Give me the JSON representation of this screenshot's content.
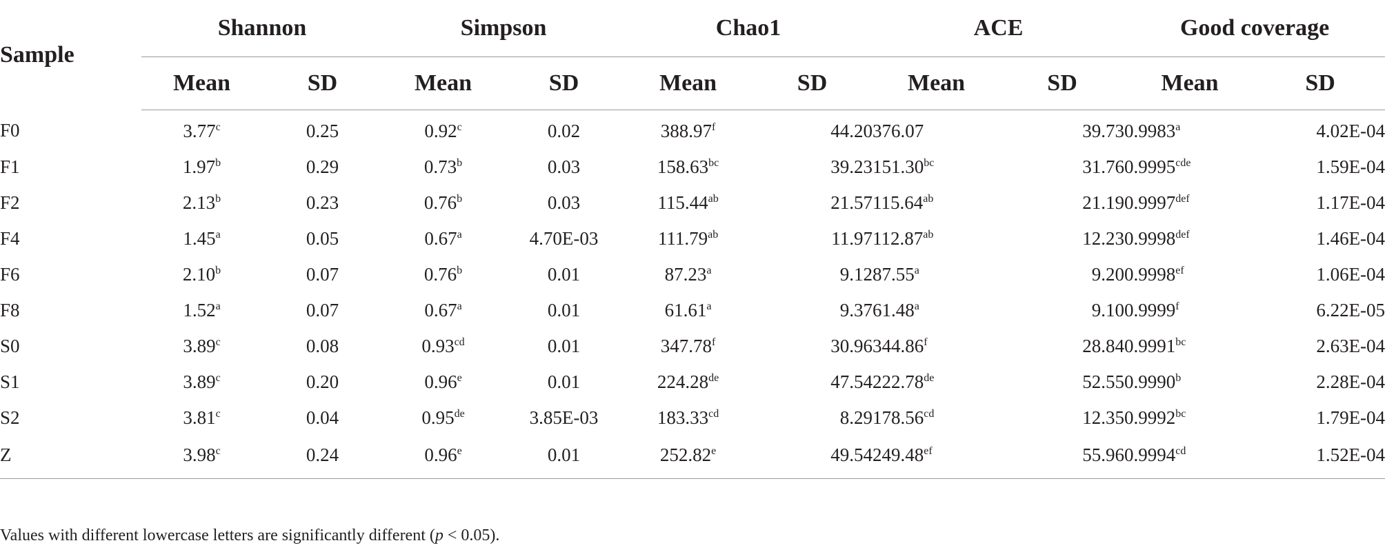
{
  "table": {
    "sample_header": "Sample",
    "groups": [
      "Shannon",
      "Simpson",
      "Chao1",
      "ACE",
      "Good coverage"
    ],
    "subheaders": [
      "Mean",
      "SD",
      "Mean",
      "SD",
      "Mean",
      "SD",
      "Mean",
      "SD",
      "Mean",
      "SD"
    ],
    "rows": [
      {
        "sample": "F0",
        "shannon_mean": "3.77",
        "shannon_sup": "c",
        "shannon_sd": "0.25",
        "simpson_mean": "0.92",
        "simpson_sup": "c",
        "simpson_sd": "0.02",
        "chao1_mean": "388.97",
        "chao1_sup": "f",
        "chao1_sd": "44.20",
        "ace_mean": "376.07",
        "ace_sup": "",
        "ace_sd": "39.73",
        "good_mean": "0.9983",
        "good_sup": "a",
        "good_sd": "4.02E-04"
      },
      {
        "sample": "F1",
        "shannon_mean": "1.97",
        "shannon_sup": "b",
        "shannon_sd": "0.29",
        "simpson_mean": "0.73",
        "simpson_sup": "b",
        "simpson_sd": "0.03",
        "chao1_mean": "158.63",
        "chao1_sup": "bc",
        "chao1_sd": "39.23",
        "ace_mean": "151.30",
        "ace_sup": "bc",
        "ace_sd": "31.76",
        "good_mean": "0.9995",
        "good_sup": "cde",
        "good_sd": "1.59E-04"
      },
      {
        "sample": "F2",
        "shannon_mean": "2.13",
        "shannon_sup": "b",
        "shannon_sd": "0.23",
        "simpson_mean": "0.76",
        "simpson_sup": "b",
        "simpson_sd": "0.03",
        "chao1_mean": "115.44",
        "chao1_sup": "ab",
        "chao1_sd": "21.57",
        "ace_mean": "115.64",
        "ace_sup": "ab",
        "ace_sd": "21.19",
        "good_mean": "0.9997",
        "good_sup": "def",
        "good_sd": "1.17E-04"
      },
      {
        "sample": "F4",
        "shannon_mean": "1.45",
        "shannon_sup": "a",
        "shannon_sd": "0.05",
        "simpson_mean": "0.67",
        "simpson_sup": "a",
        "simpson_sd": "4.70E-03",
        "chao1_mean": "111.79",
        "chao1_sup": "ab",
        "chao1_sd": "11.97",
        "ace_mean": "112.87",
        "ace_sup": "ab",
        "ace_sd": "12.23",
        "good_mean": "0.9998",
        "good_sup": "def",
        "good_sd": "1.46E-04"
      },
      {
        "sample": "F6",
        "shannon_mean": "2.10",
        "shannon_sup": "b",
        "shannon_sd": "0.07",
        "simpson_mean": "0.76",
        "simpson_sup": "b",
        "simpson_sd": "0.01",
        "chao1_mean": "87.23",
        "chao1_sup": "a",
        "chao1_sd": "9.12",
        "ace_mean": "87.55",
        "ace_sup": "a",
        "ace_sd": "9.20",
        "good_mean": "0.9998",
        "good_sup": "ef",
        "good_sd": "1.06E-04"
      },
      {
        "sample": "F8",
        "shannon_mean": "1.52",
        "shannon_sup": "a",
        "shannon_sd": "0.07",
        "simpson_mean": "0.67",
        "simpson_sup": "a",
        "simpson_sd": "0.01",
        "chao1_mean": "61.61",
        "chao1_sup": "a",
        "chao1_sd": "9.37",
        "ace_mean": "61.48",
        "ace_sup": "a",
        "ace_sd": "9.10",
        "good_mean": "0.9999",
        "good_sup": "f",
        "good_sd": "6.22E-05"
      },
      {
        "sample": "S0",
        "shannon_mean": "3.89",
        "shannon_sup": "c",
        "shannon_sd": "0.08",
        "simpson_mean": "0.93",
        "simpson_sup": "cd",
        "simpson_sd": "0.01",
        "chao1_mean": "347.78",
        "chao1_sup": "f",
        "chao1_sd": "30.96",
        "ace_mean": "344.86",
        "ace_sup": "f",
        "ace_sd": "28.84",
        "good_mean": "0.9991",
        "good_sup": "bc",
        "good_sd": "2.63E-04"
      },
      {
        "sample": "S1",
        "shannon_mean": "3.89",
        "shannon_sup": "c",
        "shannon_sd": "0.20",
        "simpson_mean": "0.96",
        "simpson_sup": "e",
        "simpson_sd": "0.01",
        "chao1_mean": "224.28",
        "chao1_sup": "de",
        "chao1_sd": "47.54",
        "ace_mean": "222.78",
        "ace_sup": "de",
        "ace_sd": "52.55",
        "good_mean": "0.9990",
        "good_sup": "b",
        "good_sd": "2.28E-04"
      },
      {
        "sample": "S2",
        "shannon_mean": "3.81",
        "shannon_sup": "c",
        "shannon_sd": "0.04",
        "simpson_mean": "0.95",
        "simpson_sup": "de",
        "simpson_sd": "3.85E-03",
        "chao1_mean": "183.33",
        "chao1_sup": "cd",
        "chao1_sd": "8.29",
        "ace_mean": "178.56",
        "ace_sup": "cd",
        "ace_sd": "12.35",
        "good_mean": "0.9992",
        "good_sup": "bc",
        "good_sd": "1.79E-04"
      },
      {
        "sample": "Z",
        "shannon_mean": "3.98",
        "shannon_sup": "c",
        "shannon_sd": "0.24",
        "simpson_mean": "0.96",
        "simpson_sup": "e",
        "simpson_sd": "0.01",
        "chao1_mean": "252.82",
        "chao1_sup": "e",
        "chao1_sd": "49.54",
        "ace_mean": "249.48",
        "ace_sup": "ef",
        "ace_sd": "55.96",
        "good_mean": "0.9994",
        "good_sup": "cd",
        "good_sd": "1.52E-04"
      }
    ]
  },
  "footnote": {
    "before": "Values with different lowercase letters are significantly different (",
    "p": "p",
    "after": " < 0.05)."
  }
}
